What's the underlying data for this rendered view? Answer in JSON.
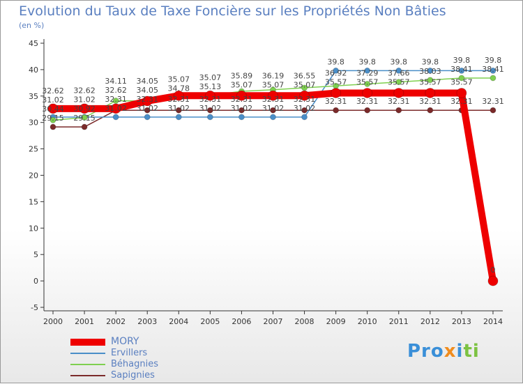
{
  "header": {
    "title": "Evolution du Taux de Taxe Foncière sur les Propriétés Non Bâties",
    "unit": "(en %)"
  },
  "logo": {
    "text": "Proxiti"
  },
  "chart_data": {
    "type": "line",
    "title": "Evolution du Taux de Taxe Foncière sur les Propriétés Non Bâties",
    "ylabel": "(en %)",
    "ylim": [
      -5,
      45
    ],
    "yticks": [
      -5,
      0,
      5,
      10,
      15,
      20,
      25,
      30,
      35,
      40,
      45
    ],
    "x": [
      "2000",
      "2001",
      "2002",
      "2003",
      "2004",
      "2005",
      "2006",
      "2007",
      "2008",
      "2009",
      "2010",
      "2011",
      "2012",
      "2013",
      "2014"
    ],
    "grid": false,
    "legend": "bottom-left",
    "series": [
      {
        "name": "Sapignies",
        "color": "#7b2a2a",
        "values": [
          29.15,
          29.15,
          32.31,
          32.31,
          32.31,
          32.31,
          32.31,
          32.31,
          32.31,
          32.31,
          32.31,
          32.31,
          32.31,
          32.31,
          32.31
        ]
      },
      {
        "name": "Ervillers",
        "color": "#4a8ec8",
        "values": [
          31.02,
          31.02,
          31.02,
          31.02,
          31.02,
          31.02,
          31.02,
          31.02,
          31.02,
          39.8,
          39.8,
          39.8,
          39.8,
          39.8,
          39.8
        ]
      },
      {
        "name": "Béhagnies",
        "color": "#7fd050",
        "values": [
          30.44,
          30.92,
          34.11,
          34.05,
          34.78,
          35.13,
          35.89,
          36.19,
          36.55,
          36.92,
          37.29,
          37.66,
          38.03,
          38.41,
          38.41
        ]
      },
      {
        "name": "MORY",
        "color": "#ee0000",
        "values": [
          32.62,
          32.62,
          32.62,
          34.05,
          35.07,
          35.07,
          35.07,
          35.07,
          35.07,
          35.57,
          35.57,
          35.57,
          35.57,
          35.57,
          0
        ]
      }
    ]
  }
}
